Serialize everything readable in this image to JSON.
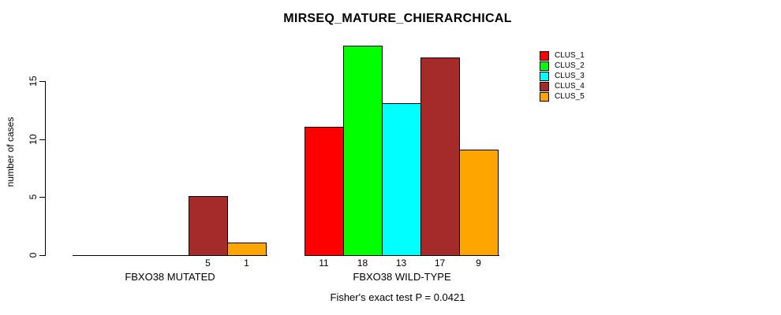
{
  "chart_data": {
    "type": "bar",
    "title": "MIRSEQ_MATURE_CHIERARCHICAL",
    "subtitle": "Fisher's exact test P = 0.0421",
    "ylabel": "number of cases",
    "xlabel": "",
    "ylim": [
      0,
      18
    ],
    "yticks": [
      0,
      5,
      10,
      15
    ],
    "grid": false,
    "legend_position": "top-right",
    "legend_border": false,
    "axis_color": "#000000",
    "bar_border_color": "#000000",
    "background_color": "#ffffff",
    "categories": [
      "FBXO38 MUTATED",
      "FBXO38 WILD-TYPE"
    ],
    "series": [
      {
        "name": "CLUS_1",
        "color": "#FF0000",
        "values": [
          0,
          11
        ]
      },
      {
        "name": "CLUS_2",
        "color": "#00FF00",
        "values": [
          0,
          18
        ]
      },
      {
        "name": "CLUS_3",
        "color": "#00FFFF",
        "values": [
          0,
          13
        ]
      },
      {
        "name": "CLUS_4",
        "color": "#A52A2A",
        "values": [
          5,
          17
        ]
      },
      {
        "name": "CLUS_5",
        "color": "#FFA500",
        "values": [
          1,
          9
        ]
      }
    ],
    "bar_value_labels_shown": [
      [
        "5",
        "1"
      ],
      [
        "11",
        "18",
        "13",
        "17",
        "9"
      ]
    ]
  }
}
